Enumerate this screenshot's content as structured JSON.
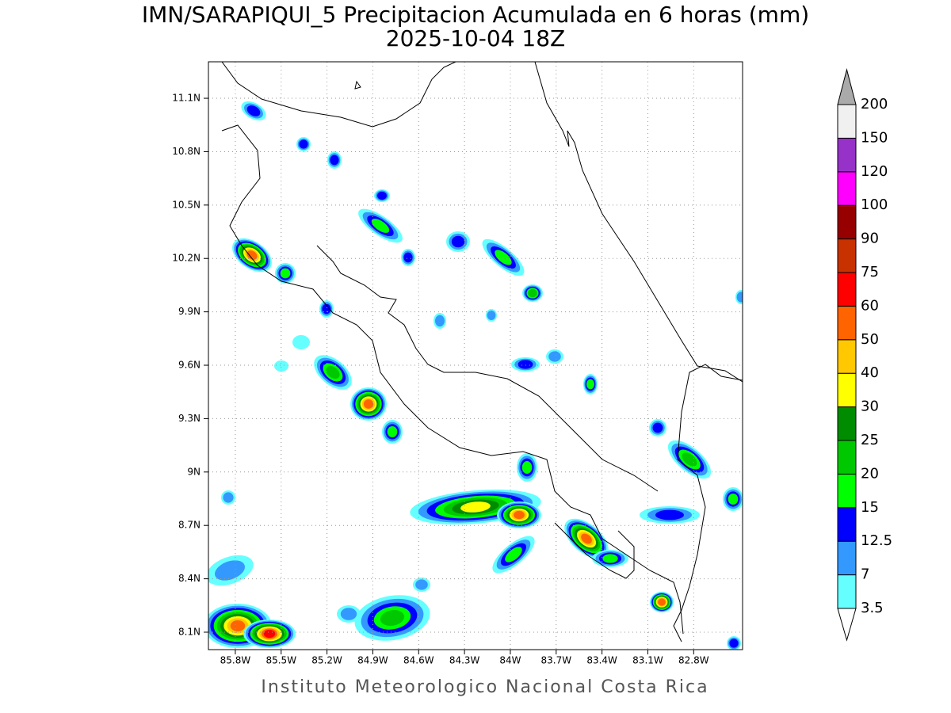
{
  "title": "IMN/SARAPIQUI_5 Precipitacion Acumulada en 6 horas (mm)",
  "subtitle": "2025-10-04 18Z",
  "map": {
    "lonlim": [
      -85.976,
      -82.48
    ],
    "latlim": [
      8.002,
      11.305
    ],
    "lon_ticks": [
      {
        "value": -85.8,
        "label": "85.8W"
      },
      {
        "value": -85.5,
        "label": "85.5W"
      },
      {
        "value": -85.2,
        "label": "85.2W"
      },
      {
        "value": -84.9,
        "label": "84.9W"
      },
      {
        "value": -84.6,
        "label": "84.6W"
      },
      {
        "value": -84.3,
        "label": "84.3W"
      },
      {
        "value": -84.0,
        "label": "84W"
      },
      {
        "value": -83.7,
        "label": "83.7W"
      },
      {
        "value": -83.4,
        "label": "83.4W"
      },
      {
        "value": -83.1,
        "label": "83.1W"
      },
      {
        "value": -82.8,
        "label": "82.8W"
      }
    ],
    "lat_ticks": [
      {
        "value": 8.1,
        "label": "8.1N"
      },
      {
        "value": 8.4,
        "label": "8.4N"
      },
      {
        "value": 8.7,
        "label": "8.7N"
      },
      {
        "value": 9.0,
        "label": "9N"
      },
      {
        "value": 9.3,
        "label": "9.3N"
      },
      {
        "value": 9.6,
        "label": "9.6N"
      },
      {
        "value": 9.9,
        "label": "9.9N"
      },
      {
        "value": 10.2,
        "label": "10.2N"
      },
      {
        "value": 10.5,
        "label": "10.5N"
      },
      {
        "value": 10.8,
        "label": "10.8N"
      },
      {
        "value": 11.1,
        "label": "11.1N"
      }
    ],
    "grid": true
  },
  "colorbar": {
    "levels": [
      3.5,
      7,
      12.5,
      15,
      20,
      25,
      30,
      40,
      50,
      60,
      75,
      90,
      100,
      120,
      150,
      200
    ],
    "colors": [
      "#66ffff",
      "#3399ff",
      "#0000ff",
      "#00ff00",
      "#00c800",
      "#008c00",
      "#ffff00",
      "#ffc800",
      "#ff6400",
      "#ff0000",
      "#c83200",
      "#960000",
      "#ff00ff",
      "#9632c8",
      "#f0f0f0"
    ],
    "under_color": "#ffffff",
    "over_color": "#aaaaaa"
  },
  "credit": "Instituto Meteorologico Nacional Costa Rica"
}
